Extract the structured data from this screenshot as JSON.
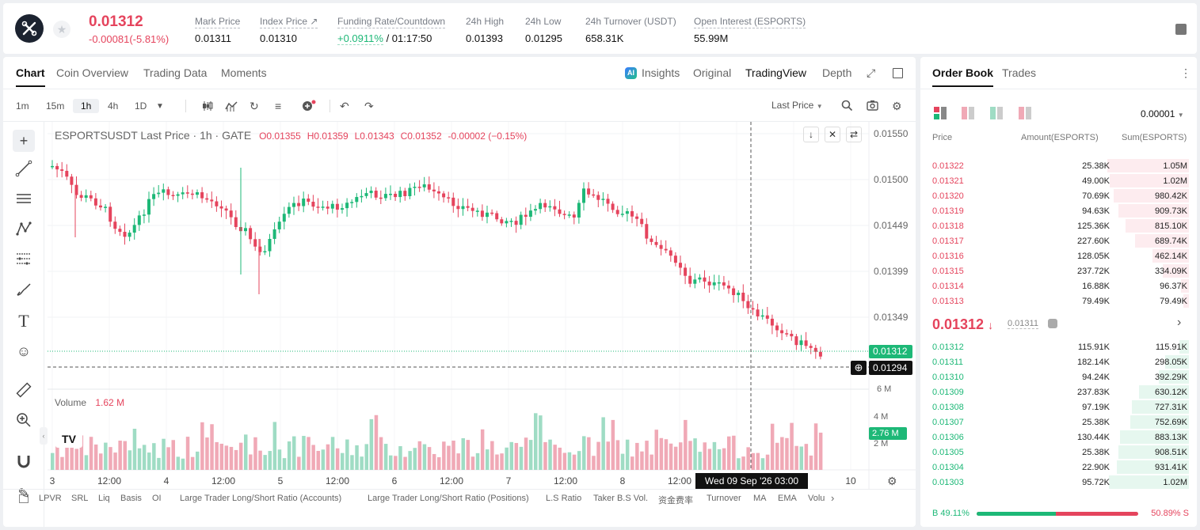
{
  "ticker": {
    "last_price": "0.01312",
    "change": "-0.00081(-5.81%)",
    "stats": [
      {
        "label": "Mark Price",
        "value": "0.01311"
      },
      {
        "label": "Index Price ↗",
        "value": "0.01310"
      },
      {
        "label": "Funding Rate/Countdown",
        "value": "+0.0911%",
        "value2": " / 01:17:50"
      },
      {
        "label": "24h High",
        "value": "0.01393"
      },
      {
        "label": "24h Low",
        "value": "0.01295"
      },
      {
        "label": "24h Turnover (USDT)",
        "value": "658.31K"
      },
      {
        "label": "Open Interest (ESPORTS)",
        "value": "55.99M"
      }
    ]
  },
  "chart_tabs": [
    "Chart",
    "Coin Overview",
    "Trading Data",
    "Moments"
  ],
  "view_tabs": [
    "Insights",
    "Original",
    "TradingView",
    "Depth"
  ],
  "timeframes": [
    "1m",
    "15m",
    "1h",
    "4h",
    "1D"
  ],
  "selected_timeframe": "1h",
  "last_price_menu": "Last Price",
  "legend": {
    "title": "ESPORTSUSDT Last Price · 1h · GATE",
    "o": "O0.01355",
    "h": "H0.01359",
    "l": "L0.01343",
    "c": "C0.01352",
    "chg": "-0.00002 (−0.15%)"
  },
  "price_axis": [
    "0.01550",
    "0.01500",
    "0.01449",
    "0.01399",
    "0.01349"
  ],
  "price_tags": {
    "last": "0.01312",
    "cursor": "0.01294",
    "volume": "2.76 M"
  },
  "volume": {
    "label": "Volume",
    "value": "1.62 M"
  },
  "volume_axis": [
    "6 M",
    "4 M",
    "2 M"
  ],
  "time_axis": [
    "3",
    "12:00",
    "4",
    "12:00",
    "5",
    "12:00",
    "6",
    "12:00",
    "7",
    "12:00",
    "8",
    "12:00",
    "10"
  ],
  "cursor_time": "Wed 09 Sep '26   03:00",
  "indicators": [
    "LPVR",
    "SRL",
    "Liq",
    "Basis",
    "OI",
    "Large Trader Long/Short Ratio (Accounts)",
    "Large Trader Long/Short Ratio (Positions)",
    "L.S Ratio",
    "Taker B.S Vol.",
    "资金费率",
    "Turnover",
    "MA",
    "EMA",
    "Volu"
  ],
  "orderbook": {
    "tabs": [
      "Order Book",
      "Trades"
    ],
    "precision": "0.00001",
    "headers": [
      "Price",
      "Amount(ESPORTS)",
      "Sum(ESPORTS)"
    ],
    "asks": [
      {
        "price": "0.01322",
        "amount": "25.38K",
        "sum": "1.05M",
        "depth": 0.97
      },
      {
        "price": "0.01321",
        "amount": "49.00K",
        "sum": "1.02M",
        "depth": 0.94
      },
      {
        "price": "0.01320",
        "amount": "70.69K",
        "sum": "980.42K",
        "depth": 0.9
      },
      {
        "price": "0.01319",
        "amount": "94.63K",
        "sum": "909.73K",
        "depth": 0.84
      },
      {
        "price": "0.01318",
        "amount": "125.36K",
        "sum": "815.10K",
        "depth": 0.75
      },
      {
        "price": "0.01317",
        "amount": "227.60K",
        "sum": "689.74K",
        "depth": 0.64
      },
      {
        "price": "0.01316",
        "amount": "128.05K",
        "sum": "462.14K",
        "depth": 0.43
      },
      {
        "price": "0.01315",
        "amount": "237.72K",
        "sum": "334.09K",
        "depth": 0.31
      },
      {
        "price": "0.01314",
        "amount": "16.88K",
        "sum": "96.37K",
        "depth": 0.09
      },
      {
        "price": "0.01313",
        "amount": "79.49K",
        "sum": "79.49K",
        "depth": 0.07
      }
    ],
    "mid_price": "0.01312",
    "mid_mark": "0.01311",
    "bids": [
      {
        "price": "0.01312",
        "amount": "115.91K",
        "sum": "115.91K",
        "depth": 0.11
      },
      {
        "price": "0.01311",
        "amount": "182.14K",
        "sum": "298.05K",
        "depth": 0.28
      },
      {
        "price": "0.01310",
        "amount": "94.24K",
        "sum": "392.29K",
        "depth": 0.36
      },
      {
        "price": "0.01309",
        "amount": "237.83K",
        "sum": "630.12K",
        "depth": 0.59
      },
      {
        "price": "0.01308",
        "amount": "97.19K",
        "sum": "727.31K",
        "depth": 0.68
      },
      {
        "price": "0.01307",
        "amount": "25.38K",
        "sum": "752.69K",
        "depth": 0.7
      },
      {
        "price": "0.01306",
        "amount": "130.44K",
        "sum": "883.13K",
        "depth": 0.82
      },
      {
        "price": "0.01305",
        "amount": "25.38K",
        "sum": "908.51K",
        "depth": 0.84
      },
      {
        "price": "0.01304",
        "amount": "22.90K",
        "sum": "931.41K",
        "depth": 0.86
      },
      {
        "price": "0.01303",
        "amount": "95.72K",
        "sum": "1.02M",
        "depth": 0.95
      }
    ],
    "buy_ratio": "49.11%",
    "sell_ratio": "50.89%",
    "buy_letter": "B",
    "sell_letter": "S",
    "buy_fraction": 0.4911
  },
  "colors": {
    "up": "#1db877",
    "down": "#e5445d",
    "up_vol": "#9fdcc4",
    "down_vol": "#f0a9b6"
  }
}
